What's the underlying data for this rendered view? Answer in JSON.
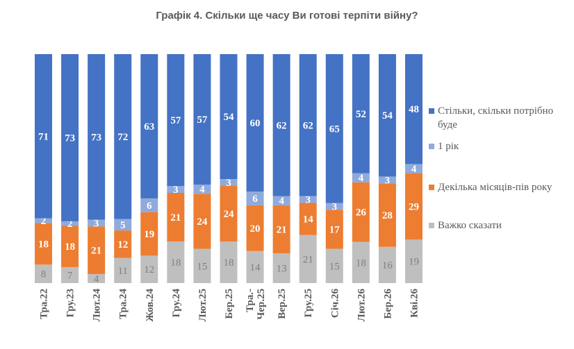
{
  "chart_data": {
    "type": "bar",
    "stacked": true,
    "title": "Графік 4. Скільки ще часу Ви готові терпіти війну?",
    "categories": [
      "Тра.22",
      "Гру.23",
      "Лют.24",
      "Тра.24",
      "Жов.24",
      "Гру.24",
      "Лют.25",
      "Бер.25",
      "Тра.-Чер.25",
      "Вер.25",
      "Гру.25",
      "Січ.26",
      "Лют.26",
      "Бер.26",
      "Кві.26"
    ],
    "series": [
      {
        "name": "Важко сказати",
        "color": "#BFBFBF",
        "values": [
          8,
          7,
          4,
          11,
          12,
          18,
          15,
          18,
          14,
          13,
          21,
          15,
          18,
          16,
          19
        ]
      },
      {
        "name": "Декілька місяців-пів року",
        "color": "#ED7D31",
        "values": [
          18,
          18,
          21,
          12,
          19,
          21,
          24,
          24,
          20,
          21,
          14,
          17,
          26,
          28,
          29
        ]
      },
      {
        "name": "1 рік",
        "color": "#8FAADC",
        "values": [
          2,
          2,
          3,
          5,
          6,
          3,
          4,
          3,
          6,
          4,
          3,
          3,
          4,
          3,
          4
        ]
      },
      {
        "name": "Стільки, скільки потрібно буде",
        "color": "#4472C4",
        "values": [
          71,
          73,
          73,
          72,
          63,
          57,
          57,
          54,
          60,
          62,
          62,
          65,
          52,
          54,
          48
        ]
      }
    ],
    "legend_position": "right",
    "grid": false
  }
}
